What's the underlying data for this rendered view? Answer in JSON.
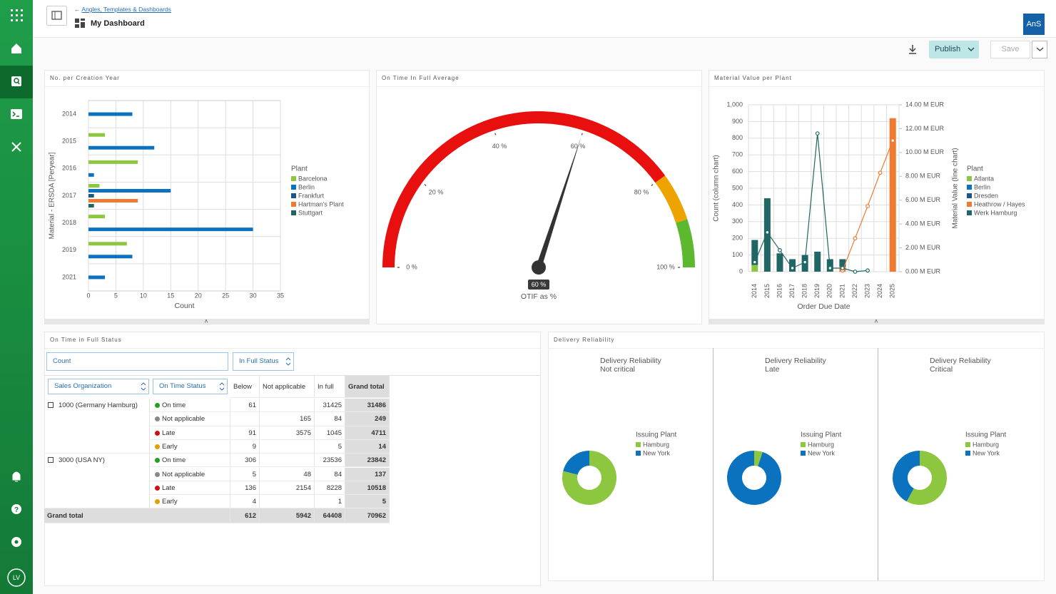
{
  "sidebar": {
    "user_initials": "LV"
  },
  "header": {
    "breadcrumb": "Angles, Templates & Dashboards",
    "title": "My Dashboard",
    "user_badge": "AnS"
  },
  "toolbar": {
    "publish": "Publish",
    "save": "Save"
  },
  "chart_data": [
    {
      "type": "bar",
      "orientation": "horizontal",
      "title": "No. per Creation Year",
      "categories": [
        "2014",
        "2015",
        "2016",
        "2017",
        "2018",
        "2019",
        "2021"
      ],
      "series": [
        {
          "name": "Barcelona",
          "color": "#8dc63f",
          "values": [
            null,
            3,
            9,
            2,
            3,
            7,
            null
          ]
        },
        {
          "name": "Berlin",
          "color": "#0b72c0",
          "values": [
            8,
            12,
            1,
            15,
            30,
            8,
            3
          ]
        },
        {
          "name": "Frankfurt",
          "color": "#1a5785",
          "values": [
            null,
            null,
            null,
            1,
            null,
            null,
            null
          ]
        },
        {
          "name": "Hartman's Plant",
          "color": "#f07a30",
          "values": [
            null,
            null,
            null,
            9,
            null,
            null,
            null
          ]
        },
        {
          "name": "Stuttgart",
          "color": "#1f6664",
          "values": [
            null,
            null,
            null,
            1,
            null,
            null,
            null
          ]
        }
      ],
      "xlim": [
        0,
        35
      ],
      "xticks": [
        0,
        5,
        10,
        15,
        20,
        25,
        30,
        35
      ],
      "grid": true,
      "xlabel": "Count",
      "ylabel": "Material - ERSDA [Peryear]",
      "legend_title": "Plant",
      "legend": "right"
    },
    {
      "type": "gauge",
      "title": "On Time In Full Average",
      "value": 60,
      "value_label": "60 %",
      "xlabel": "OTIF as %",
      "ylim": [
        0,
        100
      ],
      "yticks": [
        {
          "value": 0,
          "label": "0 %"
        },
        {
          "value": 20,
          "label": "20 %"
        },
        {
          "value": 40,
          "label": "40 %"
        },
        {
          "value": 60,
          "label": "60 %"
        },
        {
          "value": 80,
          "label": "80 %"
        },
        {
          "value": 100,
          "label": "100 %"
        }
      ],
      "bands": [
        {
          "from": 0,
          "to": 80,
          "color": "#e8100f"
        },
        {
          "from": 80,
          "to": 90,
          "color": "#eda400"
        },
        {
          "from": 90,
          "to": 100,
          "color": "#5cb82e"
        }
      ],
      "needle_color": "#333333"
    },
    {
      "type": "combo",
      "title": "Material Value per Plant",
      "categories": [
        "2014",
        "2015",
        "2016",
        "2017",
        "2018",
        "2019",
        "2020",
        "2021",
        "2022",
        "2023",
        "2024",
        "2025"
      ],
      "series": [
        {
          "name": "Atlanta",
          "color": "#8dc63f",
          "values": [
            40,
            null,
            null,
            null,
            null,
            null,
            null,
            null,
            null,
            null,
            null,
            null
          ]
        },
        {
          "name": "Berlin",
          "color": "#0b72c0",
          "values": [
            null,
            null,
            null,
            null,
            null,
            null,
            null,
            null,
            null,
            null,
            null,
            null
          ]
        },
        {
          "name": "Dresden",
          "color": "#1a5785",
          "values": [
            null,
            null,
            null,
            null,
            null,
            null,
            null,
            null,
            null,
            null,
            null,
            null
          ]
        },
        {
          "name": "Heathrow / Hayes",
          "color": "#f07a30",
          "values": [
            null,
            null,
            null,
            null,
            null,
            null,
            null,
            30,
            null,
            null,
            null,
            920
          ],
          "line_values": [
            null,
            null,
            null,
            null,
            null,
            null,
            null,
            0.1,
            2.8,
            5.5,
            8.3,
            11.0
          ]
        },
        {
          "name": "Werk Hamburg",
          "color": "#1f6664",
          "values": [
            150,
            440,
            110,
            75,
            100,
            120,
            75,
            45,
            null,
            null,
            null,
            null
          ],
          "line_values": [
            0.8,
            3.3,
            1.8,
            0.3,
            0.8,
            11.6,
            0.3,
            0.3,
            0,
            0.1,
            null,
            null
          ]
        }
      ],
      "ylim": [
        0,
        1000
      ],
      "yticks": [
        0,
        100,
        200,
        300,
        400,
        500,
        600,
        700,
        800,
        900,
        {
          "value": 1000,
          "label": "1,000"
        }
      ],
      "y2lim": [
        0,
        14
      ],
      "y2ticks": [
        {
          "value": 0,
          "label": "0.00 M EUR"
        },
        {
          "value": 2,
          "label": "2.00 M EUR"
        },
        {
          "value": 4,
          "label": "4.00 M EUR"
        },
        {
          "value": 6,
          "label": "6.00 M EUR"
        },
        {
          "value": 8,
          "label": "8.00 M EUR"
        },
        {
          "value": 10,
          "label": "10.00 M EUR"
        },
        {
          "value": 12,
          "label": "12.00 M EUR"
        },
        {
          "value": 14,
          "label": "14.00 M EUR"
        }
      ],
      "grid": true,
      "xlabel": "Order Due Date",
      "ylabel": "Count (column chart)",
      "y2label": "Material Value (line chart)",
      "legend_title": "Plant",
      "legend": "right"
    },
    {
      "type": "pie",
      "donut": true,
      "title": "Delivery Reliability",
      "subtitle": "Not critical",
      "legend_title": "Issuing Plant",
      "categories": [
        "Hamburg",
        "New York"
      ],
      "colors": [
        "#8dc63f",
        "#0b72c0"
      ],
      "values": [
        79,
        21
      ]
    },
    {
      "type": "pie",
      "donut": true,
      "title": "Delivery Reliability",
      "subtitle": "Late",
      "legend_title": "Issuing Plant",
      "categories": [
        "Hamburg",
        "New York"
      ],
      "colors": [
        "#8dc63f",
        "#0b72c0"
      ],
      "values": [
        5,
        95
      ]
    },
    {
      "type": "pie",
      "donut": true,
      "title": "Delivery Reliability",
      "subtitle": "Critical",
      "legend_title": "Issuing Plant",
      "categories": [
        "Hamburg",
        "New York"
      ],
      "colors": [
        "#8dc63f",
        "#0b72c0"
      ],
      "values": [
        58,
        42
      ]
    }
  ],
  "delivery_panel_title": "Delivery Reliability",
  "pivot": {
    "title": "On Time in Full Status",
    "measure": "Count",
    "column_field": "In Full Status",
    "row_fields": [
      "Sales Organization",
      "On Time Status"
    ],
    "columns": [
      "Below",
      "Not applicable",
      "In full",
      "Grand total"
    ],
    "groups": [
      {
        "label": "1000 (Germany Hamburg)",
        "rows": [
          {
            "label": "On time",
            "values": [
              61,
              null,
              31425,
              31486
            ]
          },
          {
            "label": "Not applicable",
            "values": [
              null,
              165,
              84,
              249
            ]
          },
          {
            "label": "Late",
            "values": [
              91,
              3575,
              1045,
              4711
            ]
          },
          {
            "label": "Early",
            "values": [
              9,
              null,
              5,
              14
            ]
          }
        ]
      },
      {
        "label": "3000 (USA NY)",
        "rows": [
          {
            "label": "On time",
            "values": [
              306,
              null,
              23536,
              23842
            ]
          },
          {
            "label": "Not applicable",
            "values": [
              5,
              48,
              84,
              137
            ]
          },
          {
            "label": "Late",
            "values": [
              136,
              2154,
              8228,
              10518
            ]
          },
          {
            "label": "Early",
            "values": [
              4,
              null,
              1,
              5
            ]
          }
        ]
      }
    ],
    "grand_total": {
      "label": "Grand total",
      "values": [
        612,
        5942,
        64408,
        70962
      ]
    }
  }
}
